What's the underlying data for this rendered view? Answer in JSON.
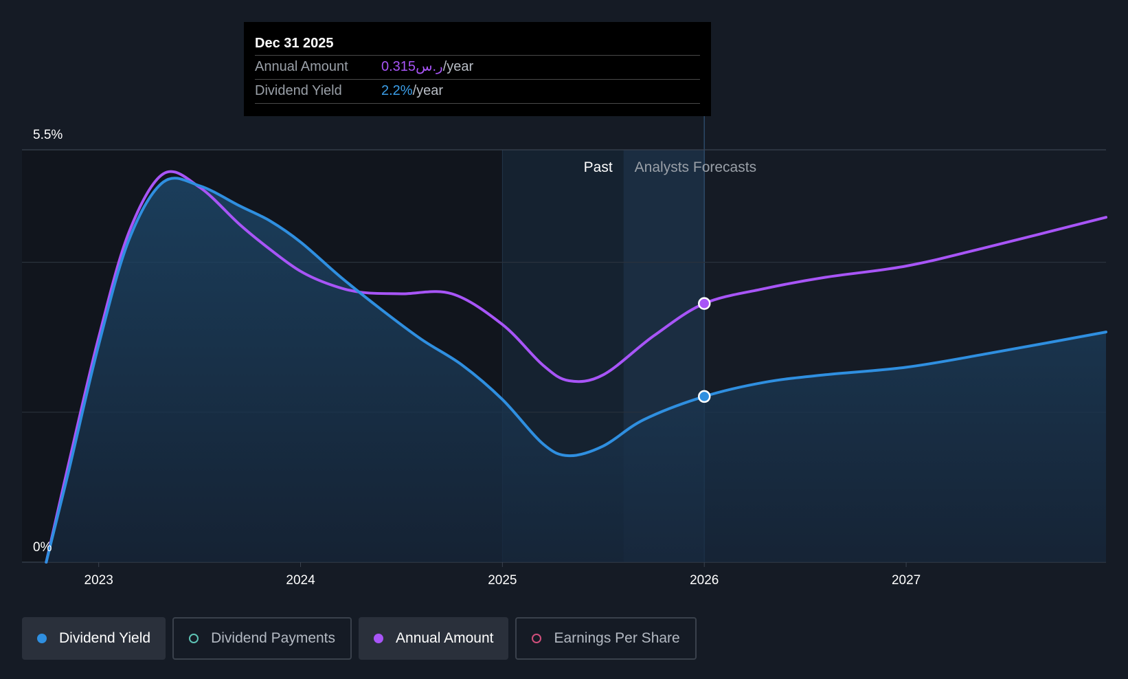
{
  "colors": {
    "background": "#151b25",
    "yield_line": "#2f8fe0",
    "annual_line": "#a855f7",
    "payments": "#5ec4b6",
    "eps": "#d14f7c"
  },
  "tooltip": {
    "date": "Dec 31 2025",
    "annual_label": "Annual Amount",
    "annual_value": "0.315ر.س",
    "annual_unit": "/year",
    "yield_label": "Dividend Yield",
    "yield_value": "2.2%",
    "yield_unit": "/year"
  },
  "legend": {
    "items": [
      {
        "label": "Dividend Yield",
        "active": true,
        "icon": "filled-dot-icon"
      },
      {
        "label": "Dividend Payments",
        "active": false,
        "icon": "hollow-dot-icon"
      },
      {
        "label": "Annual Amount",
        "active": true,
        "icon": "filled-dot-icon"
      },
      {
        "label": "Earnings Per Share",
        "active": false,
        "icon": "hollow-dot-icon"
      }
    ]
  },
  "chart_data": {
    "type": "line",
    "y_top_label": "5.5%",
    "y_bottom_label": "0%",
    "ylim": [
      0,
      5.5
    ],
    "xlim": [
      2022.62,
      2027.99
    ],
    "x_ticks": [
      {
        "value": 2023,
        "label": "2023"
      },
      {
        "value": 2024,
        "label": "2024"
      },
      {
        "value": 2025,
        "label": "2025"
      },
      {
        "value": 2026,
        "label": "2026"
      },
      {
        "value": 2027,
        "label": "2027"
      }
    ],
    "gridlines": [
      5.5,
      4.0,
      2.0,
      0
    ],
    "past_label": "Past",
    "forecast_label": "Analysts Forecasts",
    "past_region_start": 2025.0,
    "forecast_start": 2025.6,
    "forecast_boundary": 2026.0,
    "series": [
      {
        "name": "Dividend Yield",
        "x": [
          2022.74,
          2022.85,
          2023.0,
          2023.15,
          2023.32,
          2023.5,
          2023.7,
          2023.85,
          2024.0,
          2024.2,
          2024.4,
          2024.6,
          2024.8,
          2025.0,
          2025.2,
          2025.33,
          2025.5,
          2025.7,
          2026.0,
          2026.3,
          2026.6,
          2027.0,
          2027.4,
          2027.99
        ],
        "values": [
          0.0,
          1.2,
          2.9,
          4.3,
          5.07,
          5.02,
          4.75,
          4.55,
          4.27,
          3.8,
          3.37,
          2.97,
          2.63,
          2.17,
          1.58,
          1.42,
          1.55,
          1.9,
          2.21,
          2.4,
          2.5,
          2.6,
          2.78,
          3.07
        ]
      },
      {
        "name": "Annual Amount",
        "x": [
          2022.74,
          2022.85,
          2023.0,
          2023.15,
          2023.32,
          2023.5,
          2023.7,
          2023.85,
          2024.0,
          2024.15,
          2024.3,
          2024.5,
          2024.75,
          2025.0,
          2025.2,
          2025.33,
          2025.5,
          2025.75,
          2026.0,
          2026.3,
          2026.6,
          2027.0,
          2027.4,
          2027.99
        ],
        "values": [
          0.0,
          1.3,
          3.0,
          4.4,
          5.18,
          5.0,
          4.5,
          4.17,
          3.88,
          3.7,
          3.6,
          3.58,
          3.58,
          3.17,
          2.63,
          2.42,
          2.5,
          3.02,
          3.45,
          3.65,
          3.8,
          3.95,
          4.2,
          4.6
        ]
      }
    ]
  }
}
